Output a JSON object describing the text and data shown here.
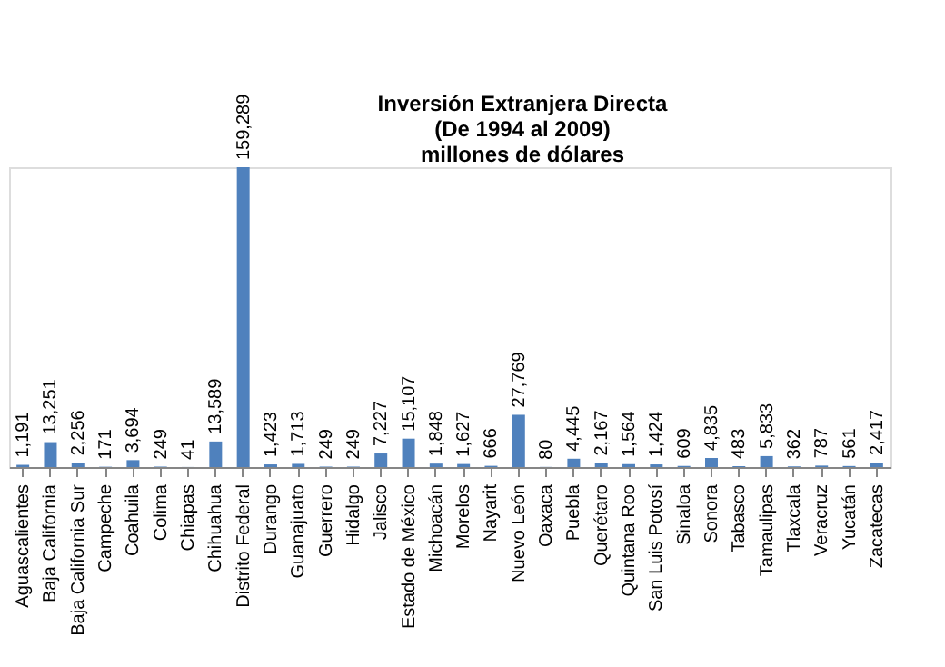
{
  "chart_data": {
    "type": "bar",
    "title": "Inversión Extranjera Directa\n(De 1994 al 2009)\nmillones de dólares",
    "categories": [
      "Aguascalientes",
      "Baja California",
      "Baja California Sur",
      "Campeche",
      "Coahuila",
      "Colima",
      "Chiapas",
      "Chihuahua",
      "Distrito Federal",
      "Durango",
      "Guanajuato",
      "Guerrero",
      "Hidalgo",
      "Jalisco",
      "Estado de México",
      "Michoacán",
      "Morelos",
      "Nayarit",
      "Nuevo León",
      "Oaxaca",
      "Puebla",
      "Querétaro",
      "Quintana Roo",
      "San Luis Potosí",
      "Sinaloa",
      "Sonora",
      "Tabasco",
      "Tamaulipas",
      "Tlaxcala",
      "Veracruz",
      "Yucatán",
      "Zacatecas"
    ],
    "values": [
      1191,
      13251,
      2256,
      171,
      3694,
      249,
      41,
      13589,
      159289,
      1423,
      1713,
      249,
      249,
      7227,
      15107,
      1848,
      1627,
      666,
      27769,
      80,
      4445,
      2167,
      1564,
      1424,
      609,
      4835,
      483,
      5833,
      362,
      787,
      561,
      2417
    ],
    "value_labels": [
      "1,191",
      "13,251",
      "2,256",
      "171",
      "3,694",
      "249",
      "41",
      "13,589",
      "159,289",
      "1,423",
      "1,713",
      "249",
      "249",
      "7,227",
      "15,107",
      "1,848",
      "1,627",
      "666",
      "27,769",
      "80",
      "4,445",
      "2,167",
      "1,564",
      "1,424",
      "609",
      "4,835",
      "483",
      "5,833",
      "362",
      "787",
      "561",
      "2,417"
    ],
    "color": "#4f81bd",
    "grid": false
  }
}
